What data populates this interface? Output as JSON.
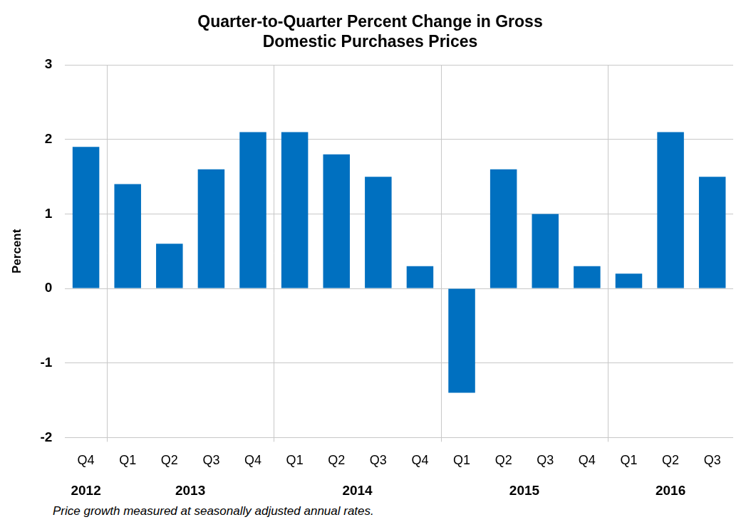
{
  "chart_data": {
    "type": "bar",
    "title": [
      "Quarter-to-Quarter Percent Change in Gross",
      "Domestic Purchases Prices"
    ],
    "y_label": "Percent",
    "note": "Price growth measured at seasonally adjusted annual rates.",
    "categories": [
      "Q4",
      "Q1",
      "Q2",
      "Q3",
      "Q4",
      "Q1",
      "Q2",
      "Q3",
      "Q4",
      "Q1",
      "Q2",
      "Q3",
      "Q4",
      "Q1",
      "Q2",
      "Q3"
    ],
    "groups": [
      {
        "label": "2012",
        "start": 0,
        "end": 0
      },
      {
        "label": "2013",
        "start": 1,
        "end": 4
      },
      {
        "label": "2014",
        "start": 5,
        "end": 8
      },
      {
        "label": "2015",
        "start": 9,
        "end": 12
      },
      {
        "label": "2016",
        "start": 13,
        "end": 15
      }
    ],
    "values": [
      1.9,
      1.4,
      0.6,
      1.6,
      2.1,
      2.1,
      1.8,
      1.5,
      0.3,
      -1.4,
      1.6,
      1.0,
      0.3,
      0.2,
      2.1,
      1.5
    ],
    "color": "#0070c0",
    "ylim": [
      -2,
      3
    ],
    "yticks": [
      -2,
      -1,
      0,
      1,
      2,
      3
    ],
    "grid": true
  }
}
